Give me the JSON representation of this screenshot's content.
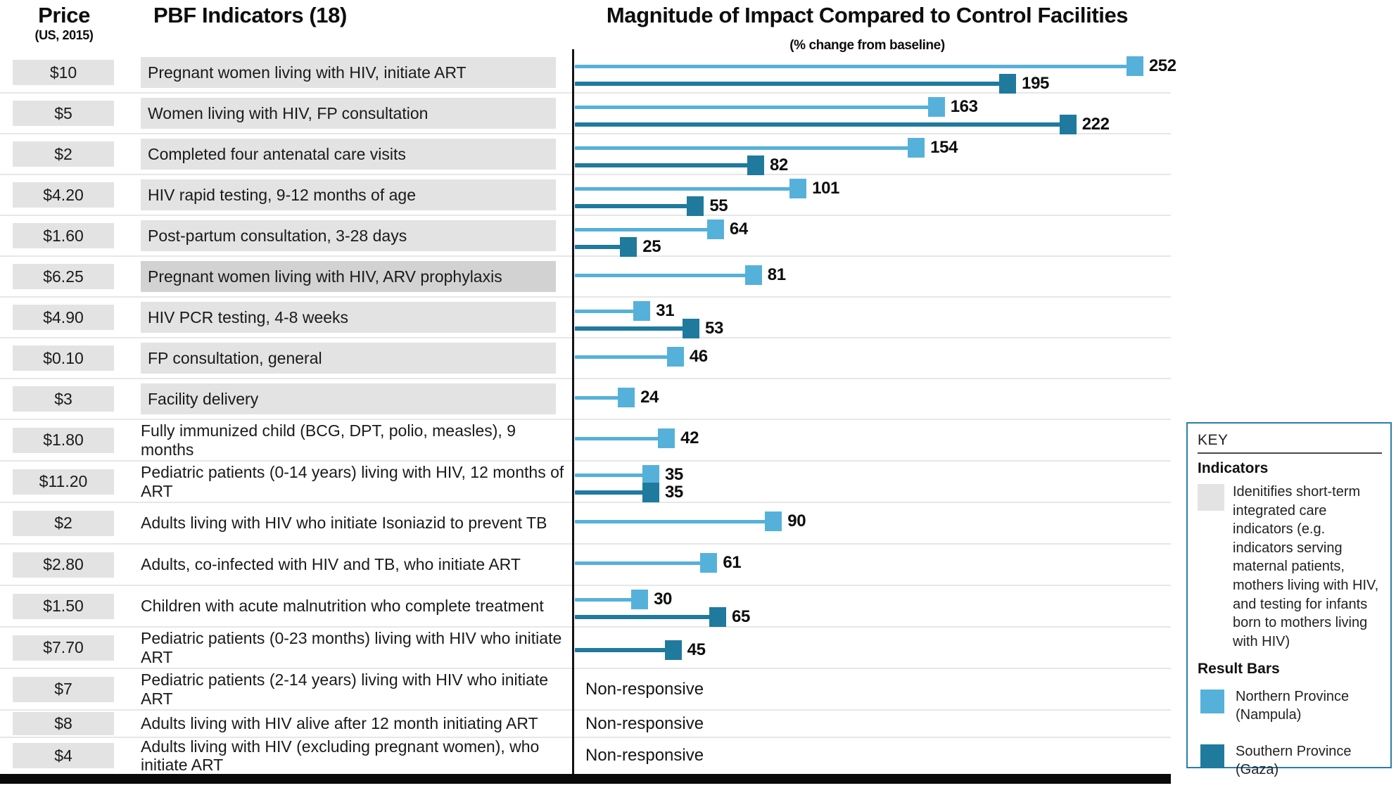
{
  "header": {
    "price_title": "Price",
    "price_subtitle": "(US, 2015)",
    "indicators_title": "PBF Indicators (18)",
    "chart_title": "Magnitude of Impact Compared to Control Facilities",
    "chart_subtitle": "(% change from baseline)"
  },
  "key": {
    "title": "KEY",
    "indicators_heading": "Indicators",
    "indicators_description": "Idenitifies short-term integrated care indicators (e.g. indicators serving maternal patients, mothers living with HIV, and testing for infants born to mothers living with HIV)",
    "result_bars_heading": "Result Bars",
    "legend": [
      {
        "name": "north",
        "label": "Northern Province (Nampula)",
        "color": "#56b1da"
      },
      {
        "name": "south",
        "label": "Southern Province (Gaza)",
        "color": "#1f7a9e"
      }
    ]
  },
  "colors": {
    "north": "#56b1da",
    "south": "#1f7a9e",
    "row_shade": "#e3e3e3",
    "row_shade_dark": "#d2d2d2",
    "grid": "#e7e7e7",
    "axis": "#141414",
    "key_border": "#2a7fa8"
  },
  "chart_data": {
    "type": "bar",
    "orientation": "horizontal",
    "title": "Magnitude of Impact Compared to Control Facilities",
    "xlabel": "% change from baseline",
    "xlim": [
      0,
      260
    ],
    "grid": false,
    "legend_position": "right",
    "series_names": [
      "Northern Province (Nampula)",
      "Southern Province (Gaza)"
    ],
    "non_responsive_label": "Non-responsive",
    "rows": [
      {
        "price": "$10",
        "label": "Pregnant women living with HIV, initiate ART",
        "shaded": true,
        "dark_shade": false,
        "north": 252,
        "south": 195,
        "non_responsive": false
      },
      {
        "price": "$5",
        "label": "Women living with HIV, FP consultation",
        "shaded": true,
        "dark_shade": false,
        "north": 163,
        "south": 222,
        "non_responsive": false
      },
      {
        "price": "$2",
        "label": "Completed four antenatal care visits",
        "shaded": true,
        "dark_shade": false,
        "north": 154,
        "south": 82,
        "non_responsive": false
      },
      {
        "price": "$4.20",
        "label": "HIV rapid testing, 9-12 months of age",
        "shaded": true,
        "dark_shade": false,
        "north": 101,
        "south": 55,
        "non_responsive": false
      },
      {
        "price": "$1.60",
        "label": "Post-partum consultation, 3-28 days",
        "shaded": true,
        "dark_shade": false,
        "north": 64,
        "south": 25,
        "non_responsive": false
      },
      {
        "price": "$6.25",
        "label": "Pregnant women living with HIV, ARV prophylaxis",
        "shaded": true,
        "dark_shade": true,
        "north": 81,
        "south": null,
        "non_responsive": false
      },
      {
        "price": "$4.90",
        "label": "HIV PCR testing, 4-8 weeks",
        "shaded": true,
        "dark_shade": false,
        "north": 31,
        "south": 53,
        "non_responsive": false
      },
      {
        "price": "$0.10",
        "label": "FP consultation, general",
        "shaded": true,
        "dark_shade": false,
        "north": 46,
        "south": null,
        "non_responsive": false
      },
      {
        "price": "$3",
        "label": "Facility delivery",
        "shaded": true,
        "dark_shade": false,
        "north": 24,
        "south": null,
        "non_responsive": false
      },
      {
        "price": "$1.80",
        "label": "Fully immunized child (BCG, DPT, polio, measles), 9 months",
        "shaded": false,
        "dark_shade": false,
        "north": 42,
        "south": null,
        "non_responsive": false
      },
      {
        "price": "$11.20",
        "label": "Pediatric patients (0-14 years) living with HIV, 12 months of ART",
        "shaded": false,
        "dark_shade": false,
        "north": 35,
        "south": 35,
        "non_responsive": false
      },
      {
        "price": "$2",
        "label": "Adults living with HIV who initiate Isoniazid to prevent TB",
        "shaded": false,
        "dark_shade": false,
        "north": 90,
        "south": null,
        "non_responsive": false
      },
      {
        "price": "$2.80",
        "label": "Adults, co-infected with HIV and TB, who initiate ART",
        "shaded": false,
        "dark_shade": false,
        "north": 61,
        "south": null,
        "non_responsive": false
      },
      {
        "price": "$1.50",
        "label": "Children with acute malnutrition who complete treatment",
        "shaded": false,
        "dark_shade": false,
        "north": 30,
        "south": 65,
        "non_responsive": false
      },
      {
        "price": "$7.70",
        "label": "Pediatric patients (0-23 months) living with HIV who initiate ART",
        "shaded": false,
        "dark_shade": false,
        "north": null,
        "south": 45,
        "non_responsive": false
      },
      {
        "price": "$7",
        "label": "Pediatric patients (2-14 years) living with HIV who initiate ART",
        "shaded": false,
        "dark_shade": false,
        "north": null,
        "south": null,
        "non_responsive": true
      },
      {
        "price": "$8",
        "label": "Adults living with HIV alive after 12 month initiating ART",
        "shaded": false,
        "dark_shade": false,
        "north": null,
        "south": null,
        "non_responsive": true
      },
      {
        "price": "$4",
        "label": "Adults living with HIV (excluding pregnant women), who initiate ART",
        "shaded": false,
        "dark_shade": false,
        "north": null,
        "south": null,
        "non_responsive": true
      }
    ]
  }
}
